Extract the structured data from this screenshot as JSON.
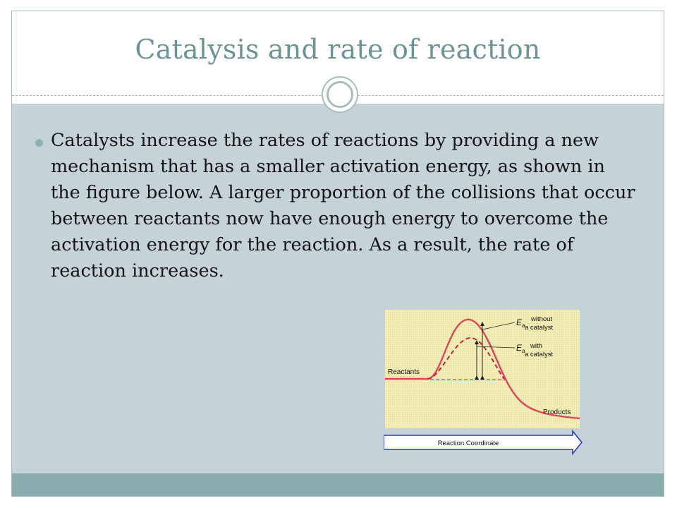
{
  "slide": {
    "title": "Catalysis and rate of reaction",
    "bullet_text": "Catalysts increase the rates of reactions by providing a new mechanism that has a smaller activation energy, as shown in the figure below. A larger proportion of the collisions that occur between reactants now have enough energy to overcome the activation energy for the reaction. As a result, the rate of reaction increases."
  },
  "figure": {
    "label_reactants": "Reactants",
    "label_products": "Products",
    "label_ea_1": "E",
    "label_ea_sub_1": "a",
    "label_without_1": "without",
    "label_without_2": "a catalyst",
    "label_ea_2": "E",
    "label_ea_sub_2": "a",
    "label_with_1": "with",
    "label_with_2": "a catalyst",
    "axis_label": "Reaction Coordinate"
  },
  "colors": {
    "title": "#6d9396",
    "content_bg": "#c5d2d8",
    "bottom_band": "#8aabab",
    "bullet": "#8eb2b3",
    "uncatalyzed_curve": "#d9465e",
    "catalyzed_curve": "#c4223c",
    "baseline_dashed": "#3aa6a0",
    "plot_bg": "#f1eab4"
  }
}
